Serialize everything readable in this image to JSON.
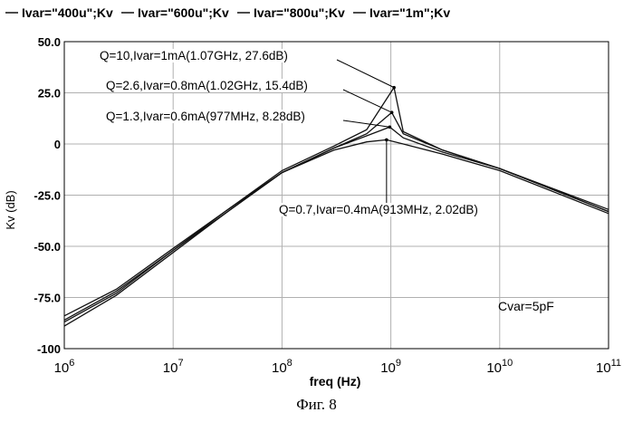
{
  "figure": {
    "caption": "Фиг. 8"
  },
  "chart_data": {
    "type": "line",
    "xscale": "log",
    "xlim": [
      1000000,
      100000000000
    ],
    "ylim": [
      -100,
      50
    ],
    "xlabel": "freq (Hz)",
    "ylabel": "Kv (dB)",
    "grid": true,
    "legend_position": "top",
    "x_ticks": [
      {
        "value": 1000000,
        "base": "10",
        "exp": "6"
      },
      {
        "value": 10000000,
        "base": "10",
        "exp": "7"
      },
      {
        "value": 100000000,
        "base": "10",
        "exp": "8"
      },
      {
        "value": 1000000000,
        "base": "10",
        "exp": "9"
      },
      {
        "value": 10000000000,
        "base": "10",
        "exp": "10"
      },
      {
        "value": 100000000000,
        "base": "10",
        "exp": "11"
      }
    ],
    "y_ticks": [
      {
        "value": 50,
        "label": "50.0"
      },
      {
        "value": 25,
        "label": "25.0"
      },
      {
        "value": 0,
        "label": "0"
      },
      {
        "value": -25,
        "label": "-25.0"
      },
      {
        "value": -50,
        "label": "-50.0"
      },
      {
        "value": -75,
        "label": "-75.0"
      },
      {
        "value": -100,
        "label": "-100"
      }
    ],
    "series": [
      {
        "name": "Ivar=\"400u\";Kv",
        "x": [
          1000000,
          3000000,
          10000000,
          30000000,
          100000000,
          300000000,
          600000000,
          913000000,
          1300000000,
          3000000000,
          10000000000,
          100000000000
        ],
        "y": [
          -89,
          -74,
          -53,
          -34,
          -14,
          -3,
          1,
          2.02,
          0,
          -5,
          -13,
          -34
        ]
      },
      {
        "name": "Ivar=\"600u\";Kv",
        "x": [
          1000000,
          3000000,
          10000000,
          30000000,
          100000000,
          300000000,
          600000000,
          977000000,
          1300000000,
          3000000000,
          10000000000,
          100000000000
        ],
        "y": [
          -87,
          -73,
          -52,
          -34,
          -14,
          -2,
          4,
          8.28,
          3,
          -4,
          -12,
          -33
        ]
      },
      {
        "name": "Ivar=\"800u\";Kv",
        "x": [
          1000000,
          3000000,
          10000000,
          30000000,
          100000000,
          300000000,
          600000000,
          1020000000,
          1300000000,
          3000000000,
          10000000000,
          100000000000
        ],
        "y": [
          -86,
          -72,
          -52,
          -33,
          -14,
          -2,
          5,
          15.4,
          5,
          -3,
          -12,
          -33
        ]
      },
      {
        "name": "Ivar=\"1m\";Kv",
        "x": [
          1000000,
          3000000,
          10000000,
          30000000,
          100000000,
          300000000,
          600000000,
          1070000000,
          1300000000,
          3000000000,
          10000000000,
          100000000000
        ],
        "y": [
          -84,
          -71,
          -51,
          -33,
          -13,
          -1,
          7,
          27.6,
          6,
          -3,
          -12,
          -32
        ]
      }
    ],
    "annotations": [
      {
        "text": "Q=10,Ivar=1mA(1.07GHz, 27.6dB)",
        "x": 1070000000,
        "y": 27.6
      },
      {
        "text": "Q=2.6,Ivar=0.8mA(1.02GHz, 15.4dB)",
        "x": 1020000000,
        "y": 15.4
      },
      {
        "text": "Q=1.3,Ivar=0.6mA(977MHz, 8.28dB)",
        "x": 977000000,
        "y": 8.28
      },
      {
        "text": "Q=0.7,Ivar=0.4mA(913MHz, 2.02dB)",
        "x": 913000000,
        "y": 2.02
      }
    ],
    "note": "Cvar=5pF",
    "colors": {
      "line": "#111111",
      "grid": "#b0b0b0",
      "axis": "#000000"
    }
  }
}
